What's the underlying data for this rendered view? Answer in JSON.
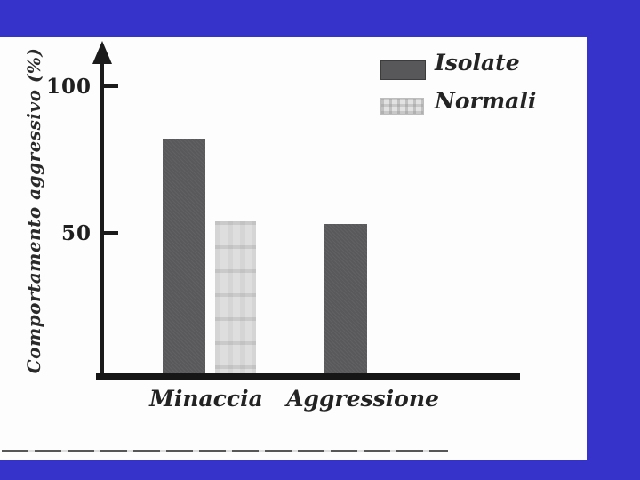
{
  "slide": {
    "background_color": "#3533c9",
    "panel_color": "#fdfdfd"
  },
  "chart_data": {
    "type": "bar",
    "categories": [
      "Minaccia",
      "Aggressione"
    ],
    "series": [
      {
        "name": "Isolate",
        "values": [
          82,
          53
        ],
        "color": "#59595b",
        "style": "solid-dark"
      },
      {
        "name": "Normali",
        "values": [
          54,
          null
        ],
        "color": "#dedede",
        "style": "halftone-light"
      }
    ],
    "title": "",
    "xlabel": "",
    "ylabel": "Comportamento aggressivo (%)",
    "yticks": [
      100,
      50
    ],
    "ylim": [
      0,
      110
    ],
    "grid": false,
    "legend_position": "top-right",
    "axis_color": "#1b1b1b"
  }
}
